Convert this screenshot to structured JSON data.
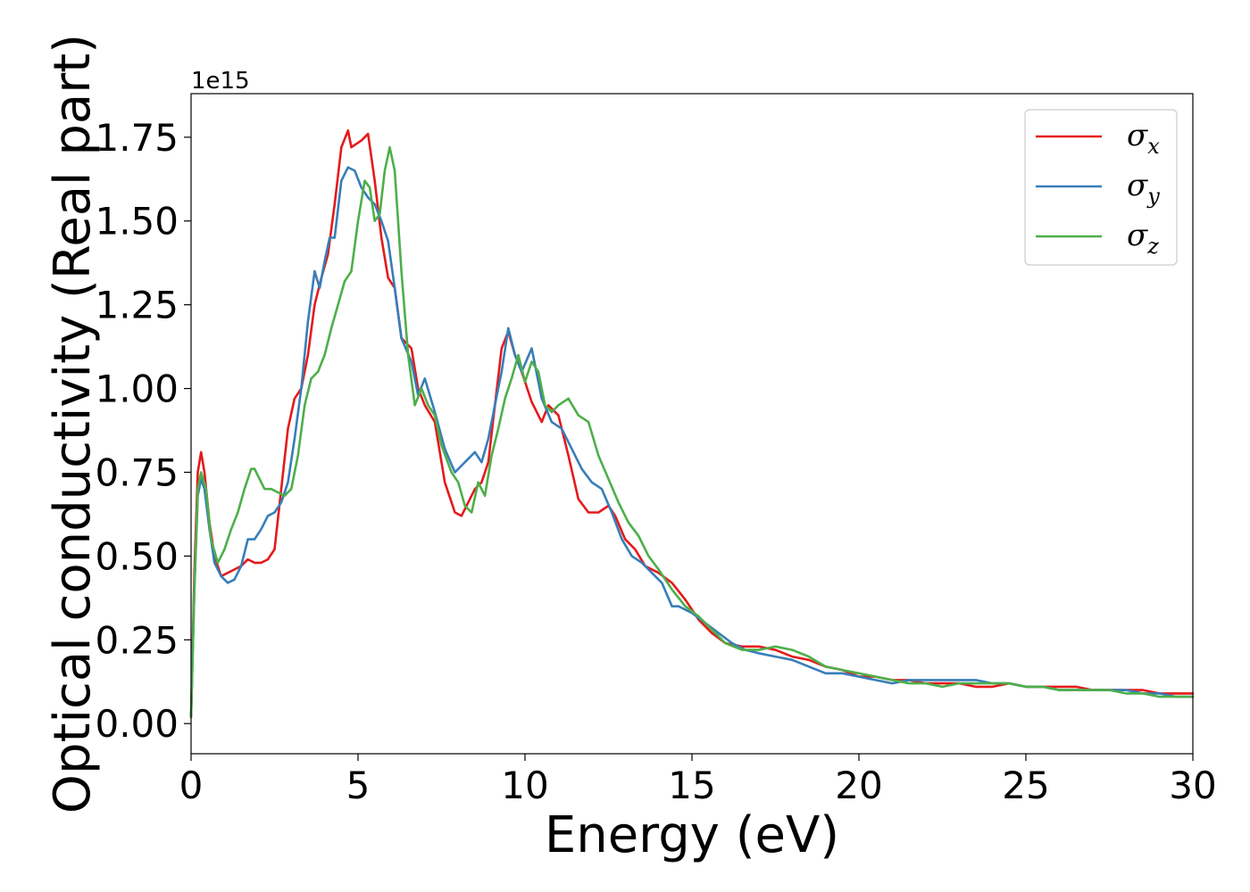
{
  "chart_data": {
    "type": "line",
    "xlabel": "Energy (eV)",
    "ylabel": "Optical conductivity (Real part)",
    "y_offset_text": "1e15",
    "xlim": [
      0,
      30
    ],
    "ylim": [
      -0.09,
      1.88
    ],
    "x_ticks": [
      0,
      5,
      10,
      15,
      20,
      25,
      30
    ],
    "x_tick_labels": [
      "0",
      "5",
      "10",
      "15",
      "20",
      "25",
      "30"
    ],
    "y_ticks": [
      0,
      0.25,
      0.5,
      0.75,
      1.0,
      1.25,
      1.5,
      1.75
    ],
    "y_tick_labels": [
      "0.00",
      "0.25",
      "0.50",
      "0.75",
      "1.00",
      "1.25",
      "1.50",
      "1.75"
    ],
    "grid": false,
    "legend_position": "top-right",
    "series": [
      {
        "name": "σx",
        "symbol": "σ",
        "subscript": "x",
        "color": "#e41a1c",
        "x": [
          0,
          0.1,
          0.2,
          0.3,
          0.4,
          0.55,
          0.7,
          0.9,
          1.1,
          1.3,
          1.5,
          1.7,
          1.9,
          2.1,
          2.3,
          2.5,
          2.7,
          2.9,
          3.1,
          3.3,
          3.5,
          3.7,
          3.9,
          4.1,
          4.3,
          4.5,
          4.7,
          4.8,
          4.95,
          5.1,
          5.3,
          5.5,
          5.7,
          5.9,
          6.1,
          6.3,
          6.6,
          6.8,
          7.0,
          7.3,
          7.6,
          7.9,
          8.1,
          8.3,
          8.5,
          8.7,
          8.9,
          9.1,
          9.3,
          9.5,
          9.7,
          9.9,
          10.2,
          10.5,
          10.7,
          11.0,
          11.3,
          11.6,
          11.9,
          12.2,
          12.5,
          12.7,
          13.0,
          13.3,
          13.6,
          14.0,
          14.4,
          14.8,
          15.2,
          15.6,
          16.0,
          16.5,
          17.0,
          17.5,
          18.0,
          18.5,
          19.0,
          19.5,
          20.0,
          20.5,
          21.0,
          21.5,
          22.0,
          22.5,
          23.0,
          23.5,
          24.0,
          24.5,
          25.0,
          25.5,
          26.0,
          26.5,
          27.0,
          27.5,
          28.0,
          28.5,
          29.0,
          29.5,
          30.0
        ],
        "y": [
          0.02,
          0.45,
          0.75,
          0.81,
          0.75,
          0.6,
          0.5,
          0.44,
          0.45,
          0.46,
          0.47,
          0.49,
          0.48,
          0.48,
          0.49,
          0.52,
          0.7,
          0.88,
          0.97,
          1.0,
          1.1,
          1.25,
          1.33,
          1.4,
          1.55,
          1.72,
          1.77,
          1.72,
          1.73,
          1.74,
          1.76,
          1.62,
          1.45,
          1.33,
          1.3,
          1.15,
          1.12,
          1.0,
          0.95,
          0.9,
          0.72,
          0.63,
          0.62,
          0.66,
          0.7,
          0.72,
          0.78,
          0.95,
          1.12,
          1.17,
          1.1,
          1.05,
          0.96,
          0.9,
          0.95,
          0.92,
          0.8,
          0.67,
          0.63,
          0.63,
          0.65,
          0.62,
          0.55,
          0.52,
          0.47,
          0.45,
          0.42,
          0.37,
          0.31,
          0.27,
          0.24,
          0.23,
          0.23,
          0.22,
          0.2,
          0.19,
          0.17,
          0.16,
          0.14,
          0.14,
          0.13,
          0.13,
          0.12,
          0.12,
          0.12,
          0.11,
          0.11,
          0.12,
          0.11,
          0.11,
          0.11,
          0.11,
          0.1,
          0.1,
          0.1,
          0.1,
          0.09,
          0.09,
          0.09
        ]
      },
      {
        "name": "σy",
        "symbol": "σ",
        "subscript": "y",
        "color": "#377eb8",
        "x": [
          0,
          0.1,
          0.2,
          0.3,
          0.4,
          0.55,
          0.7,
          0.9,
          1.1,
          1.3,
          1.5,
          1.7,
          1.9,
          2.1,
          2.3,
          2.5,
          2.7,
          2.9,
          3.1,
          3.3,
          3.5,
          3.7,
          3.85,
          4.0,
          4.15,
          4.3,
          4.5,
          4.7,
          4.9,
          5.1,
          5.3,
          5.5,
          5.7,
          5.9,
          6.1,
          6.3,
          6.6,
          6.8,
          7.0,
          7.3,
          7.6,
          7.9,
          8.1,
          8.3,
          8.5,
          8.7,
          8.9,
          9.1,
          9.3,
          9.5,
          9.7,
          9.9,
          10.2,
          10.5,
          10.8,
          11.1,
          11.4,
          11.7,
          12.0,
          12.3,
          12.6,
          12.9,
          13.2,
          13.5,
          13.8,
          14.1,
          14.4,
          14.6,
          15.0,
          15.4,
          15.8,
          16.2,
          16.6,
          17.0,
          17.5,
          18.0,
          18.5,
          19.0,
          19.5,
          20.0,
          20.5,
          21.0,
          21.5,
          22.0,
          22.5,
          23.0,
          23.5,
          24.0,
          24.5,
          25.0,
          25.5,
          26.0,
          26.5,
          27.0,
          27.5,
          28.0,
          28.5,
          29.0,
          29.5,
          30.0
        ],
        "y": [
          0.02,
          0.4,
          0.68,
          0.73,
          0.7,
          0.58,
          0.48,
          0.44,
          0.42,
          0.43,
          0.47,
          0.55,
          0.55,
          0.58,
          0.62,
          0.63,
          0.66,
          0.72,
          0.85,
          1.0,
          1.2,
          1.35,
          1.3,
          1.38,
          1.45,
          1.45,
          1.62,
          1.66,
          1.65,
          1.6,
          1.57,
          1.55,
          1.5,
          1.44,
          1.3,
          1.15,
          1.08,
          0.98,
          1.03,
          0.93,
          0.82,
          0.75,
          0.77,
          0.79,
          0.81,
          0.78,
          0.85,
          0.95,
          1.05,
          1.18,
          1.1,
          1.05,
          1.12,
          0.97,
          0.9,
          0.88,
          0.82,
          0.76,
          0.72,
          0.7,
          0.63,
          0.55,
          0.5,
          0.48,
          0.45,
          0.42,
          0.35,
          0.35,
          0.33,
          0.3,
          0.27,
          0.24,
          0.22,
          0.21,
          0.2,
          0.19,
          0.17,
          0.15,
          0.15,
          0.14,
          0.13,
          0.12,
          0.13,
          0.13,
          0.13,
          0.13,
          0.13,
          0.12,
          0.12,
          0.11,
          0.11,
          0.1,
          0.1,
          0.1,
          0.1,
          0.1,
          0.09,
          0.09,
          0.08,
          0.08
        ]
      },
      {
        "name": "σz",
        "symbol": "σ",
        "subscript": "z",
        "color": "#4daf4a",
        "x": [
          0,
          0.1,
          0.2,
          0.3,
          0.45,
          0.6,
          0.8,
          1.0,
          1.2,
          1.4,
          1.6,
          1.8,
          1.9,
          2.0,
          2.2,
          2.4,
          2.6,
          2.8,
          3.0,
          3.2,
          3.4,
          3.6,
          3.8,
          4.0,
          4.2,
          4.4,
          4.6,
          4.8,
          5.0,
          5.2,
          5.35,
          5.5,
          5.65,
          5.8,
          5.95,
          6.1,
          6.3,
          6.5,
          6.7,
          6.9,
          7.1,
          7.3,
          7.5,
          7.8,
          8.0,
          8.2,
          8.4,
          8.6,
          8.8,
          9.0,
          9.2,
          9.4,
          9.6,
          9.8,
          10.0,
          10.2,
          10.4,
          10.6,
          10.8,
          11.0,
          11.3,
          11.6,
          11.9,
          12.2,
          12.5,
          12.8,
          13.1,
          13.4,
          13.7,
          14.0,
          14.4,
          14.8,
          15.2,
          15.6,
          16.0,
          16.5,
          17.0,
          17.5,
          18.0,
          18.5,
          19.0,
          19.5,
          20.0,
          20.5,
          21.0,
          21.5,
          22.0,
          22.5,
          23.0,
          23.5,
          24.0,
          24.5,
          25.0,
          25.5,
          26.0,
          26.5,
          27.0,
          27.5,
          28.0,
          28.5,
          29.0,
          29.5,
          30.0
        ],
        "y": [
          0.02,
          0.4,
          0.7,
          0.75,
          0.7,
          0.55,
          0.48,
          0.52,
          0.58,
          0.63,
          0.7,
          0.76,
          0.76,
          0.74,
          0.7,
          0.7,
          0.69,
          0.68,
          0.7,
          0.8,
          0.95,
          1.03,
          1.05,
          1.1,
          1.18,
          1.25,
          1.32,
          1.35,
          1.5,
          1.62,
          1.6,
          1.5,
          1.52,
          1.65,
          1.72,
          1.65,
          1.35,
          1.1,
          0.95,
          1.0,
          0.95,
          0.92,
          0.83,
          0.75,
          0.72,
          0.65,
          0.63,
          0.72,
          0.68,
          0.8,
          0.88,
          0.97,
          1.03,
          1.1,
          1.02,
          1.08,
          1.05,
          0.95,
          0.93,
          0.95,
          0.97,
          0.92,
          0.9,
          0.8,
          0.73,
          0.66,
          0.6,
          0.56,
          0.5,
          0.46,
          0.4,
          0.35,
          0.32,
          0.28,
          0.24,
          0.22,
          0.22,
          0.23,
          0.22,
          0.2,
          0.17,
          0.16,
          0.15,
          0.14,
          0.13,
          0.12,
          0.12,
          0.11,
          0.12,
          0.12,
          0.12,
          0.12,
          0.11,
          0.11,
          0.1,
          0.1,
          0.1,
          0.1,
          0.09,
          0.09,
          0.08,
          0.08,
          0.08
        ]
      }
    ]
  }
}
